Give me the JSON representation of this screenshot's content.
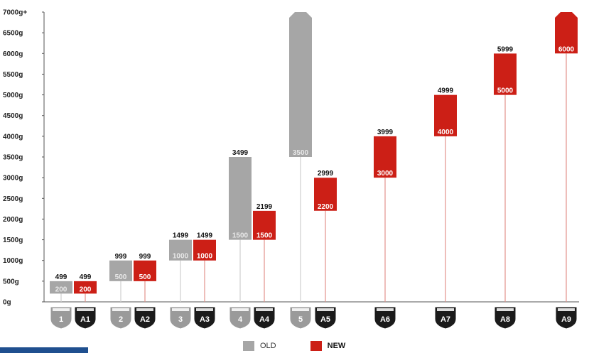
{
  "chart_data": {
    "type": "bar",
    "ylim": [
      0,
      7000
    ],
    "y_ticks": [
      "0g",
      "500g",
      "1000g",
      "1500g",
      "2000g",
      "2500g",
      "3000g",
      "3500g",
      "4000g",
      "4500g",
      "5000g",
      "5500g",
      "6000g",
      "6500g",
      "7000g+"
    ],
    "y_tick_values": [
      0,
      500,
      1000,
      1500,
      2000,
      2500,
      3000,
      3500,
      4000,
      4500,
      5000,
      5500,
      6000,
      6500,
      7000
    ],
    "groups": [
      {
        "badge": "1",
        "series": "OLD",
        "low": 200,
        "high": 499,
        "low_label": "200",
        "high_label": "499"
      },
      {
        "badge": "A1",
        "series": "NEW",
        "low": 200,
        "high": 499,
        "low_label": "200",
        "high_label": "499"
      },
      {
        "badge": "2",
        "series": "OLD",
        "low": 500,
        "high": 999,
        "low_label": "500",
        "high_label": "999"
      },
      {
        "badge": "A2",
        "series": "NEW",
        "low": 500,
        "high": 999,
        "low_label": "500",
        "high_label": "999"
      },
      {
        "badge": "3",
        "series": "OLD",
        "low": 1000,
        "high": 1499,
        "low_label": "1000",
        "high_label": "1499"
      },
      {
        "badge": "A3",
        "series": "NEW",
        "low": 1000,
        "high": 1499,
        "low_label": "1000",
        "high_label": "1499"
      },
      {
        "badge": "4",
        "series": "OLD",
        "low": 1500,
        "high": 3499,
        "low_label": "1500",
        "high_label": "3499"
      },
      {
        "badge": "A4",
        "series": "NEW",
        "low": 1500,
        "high": 2199,
        "low_label": "1500",
        "high_label": "2199"
      },
      {
        "badge": "5",
        "series": "OLD",
        "low": 3500,
        "high": 7000,
        "low_label": "3500",
        "high_label": ""
      },
      {
        "badge": "A5",
        "series": "NEW",
        "low": 2200,
        "high": 2999,
        "low_label": "2200",
        "high_label": "2999"
      },
      {
        "badge": "A6",
        "series": "NEW",
        "low": 3000,
        "high": 3999,
        "low_label": "3000",
        "high_label": "3999"
      },
      {
        "badge": "A7",
        "series": "NEW",
        "low": 4000,
        "high": 4999,
        "low_label": "4000",
        "high_label": "4999"
      },
      {
        "badge": "A8",
        "series": "NEW",
        "low": 5000,
        "high": 5999,
        "low_label": "5000",
        "high_label": "5999"
      },
      {
        "badge": "A9",
        "series": "NEW",
        "low": 6000,
        "high": 7000,
        "low_label": "6000",
        "high_label": ""
      }
    ],
    "legend": {
      "old_label": "OLD",
      "new_label": "NEW",
      "placement": "bottom-center"
    }
  },
  "colors": {
    "old": "#a6a6a6",
    "old_badge": "#9a9a9a",
    "new": "#cc1f16",
    "new_badge": "#1b1b1b",
    "old_stem": "#cfcfcf",
    "new_stem": "#e3928c",
    "axis": "#555555"
  }
}
